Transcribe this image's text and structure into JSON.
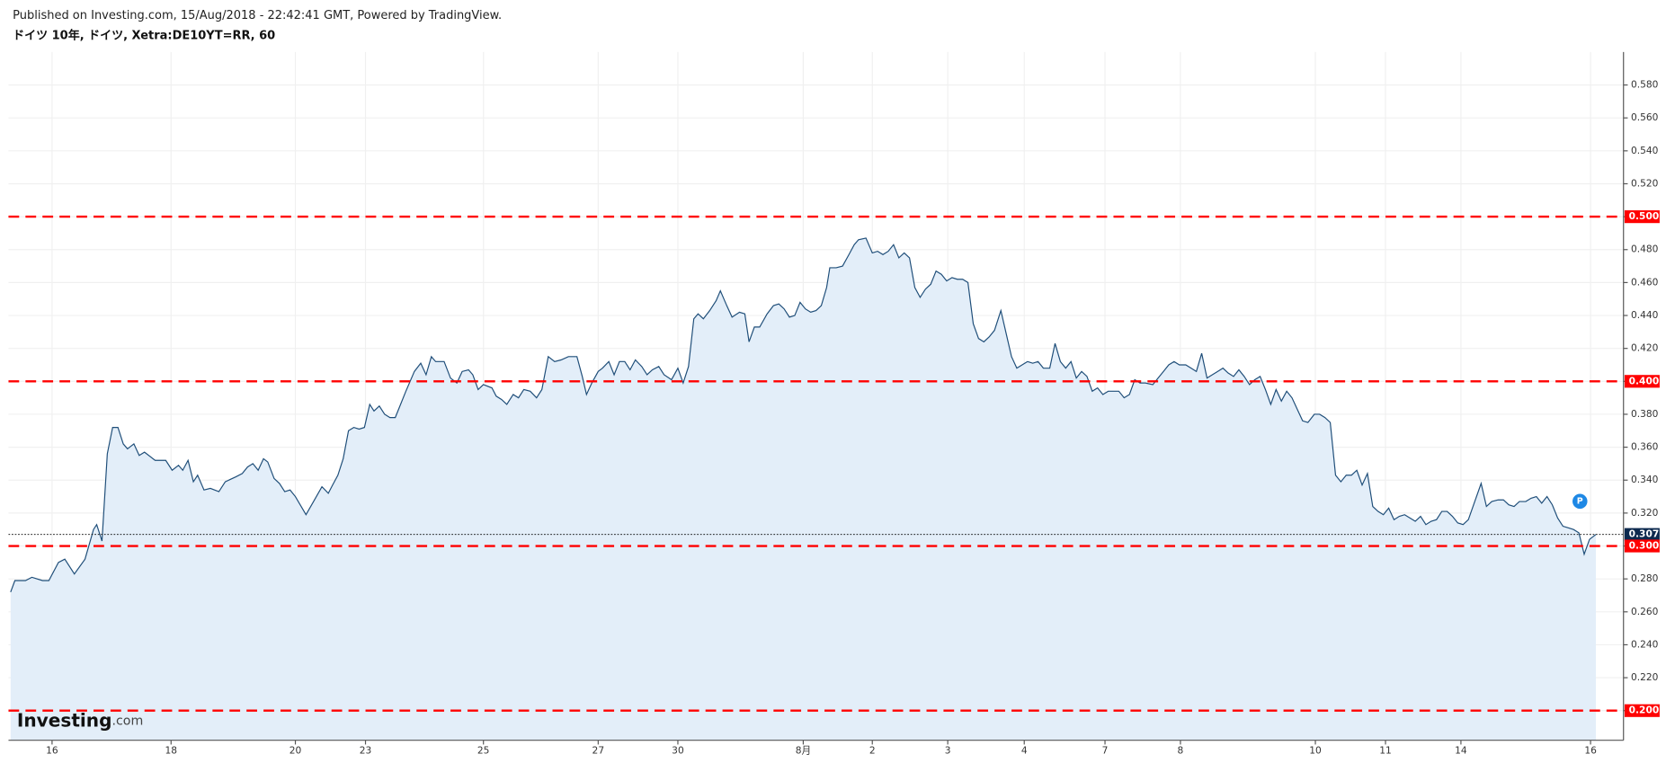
{
  "chart_data": {
    "type": "area",
    "source_note": "Published on Investing.com, 15/Aug/2018 - 22:42:41 GMT, Powered by TradingView.",
    "title": "ドイツ 10年, ドイツ, Xetra:DE10YT=RR, 60",
    "logo": "Investing",
    "logo_suffix": ".com",
    "annotation": "P",
    "color": "#1f4e79",
    "fill_color": "#e3eef9",
    "grid": true,
    "xlim": [
      8,
      1528
    ],
    "ylim": [
      0.182,
      0.6
    ],
    "xticks": [
      {
        "value": 49,
        "label": "16"
      },
      {
        "value": 161,
        "label": "18"
      },
      {
        "value": 278,
        "label": "20"
      },
      {
        "value": 344,
        "label": "23"
      },
      {
        "value": 455,
        "label": "25"
      },
      {
        "value": 563,
        "label": "27"
      },
      {
        "value": 638,
        "label": "30"
      },
      {
        "value": 756,
        "label": "8月"
      },
      {
        "value": 821,
        "label": "2"
      },
      {
        "value": 892,
        "label": "3"
      },
      {
        "value": 964,
        "label": "4"
      },
      {
        "value": 1040,
        "label": "7"
      },
      {
        "value": 1111,
        "label": "8"
      },
      {
        "value": 1238,
        "label": "10"
      },
      {
        "value": 1304,
        "label": "11"
      },
      {
        "value": 1375,
        "label": "14"
      },
      {
        "value": 1497,
        "label": "16"
      }
    ],
    "yticks": [
      {
        "value": 0.2,
        "label": "0.200"
      },
      {
        "value": 0.22,
        "label": "0.220"
      },
      {
        "value": 0.24,
        "label": "0.240"
      },
      {
        "value": 0.26,
        "label": "0.260"
      },
      {
        "value": 0.28,
        "label": "0.280"
      },
      {
        "value": 0.3,
        "label": "0.300"
      },
      {
        "value": 0.32,
        "label": "0.320"
      },
      {
        "value": 0.34,
        "label": "0.340"
      },
      {
        "value": 0.36,
        "label": "0.360"
      },
      {
        "value": 0.38,
        "label": "0.380"
      },
      {
        "value": 0.4,
        "label": "0.400"
      },
      {
        "value": 0.42,
        "label": "0.420"
      },
      {
        "value": 0.44,
        "label": "0.440"
      },
      {
        "value": 0.46,
        "label": "0.460"
      },
      {
        "value": 0.48,
        "label": "0.480"
      },
      {
        "value": 0.5,
        "label": "0.500"
      },
      {
        "value": 0.52,
        "label": "0.520"
      },
      {
        "value": 0.54,
        "label": "0.540"
      },
      {
        "value": 0.56,
        "label": "0.560"
      },
      {
        "value": 0.58,
        "label": "0.580"
      }
    ],
    "levels": [
      {
        "value": 0.5,
        "label": "0.500"
      },
      {
        "value": 0.4,
        "label": "0.400"
      },
      {
        "value": 0.3,
        "label": "0.300"
      },
      {
        "value": 0.2,
        "label": "0.200"
      }
    ],
    "level_color": "#ff0000",
    "last": {
      "value": 0.307,
      "label": "0.307"
    },
    "last_color": "#0d2a4f",
    "x": [
      10,
      14,
      24,
      30,
      40,
      46,
      55,
      61,
      70,
      80,
      88,
      91,
      96,
      101,
      106,
      111,
      116,
      120,
      126,
      131,
      136,
      146,
      156,
      162,
      168,
      172,
      177,
      182,
      186,
      192,
      198,
      206,
      212,
      222,
      228,
      233,
      238,
      243,
      248,
      252,
      258,
      263,
      268,
      273,
      278,
      288,
      296,
      303,
      309,
      313,
      318,
      323,
      328,
      333,
      338,
      343,
      348,
      352,
      357,
      362,
      367,
      372,
      377,
      382,
      390,
      396,
      401,
      406,
      410,
      418,
      424,
      430,
      435,
      441,
      445,
      450,
      455,
      463,
      467,
      472,
      477,
      483,
      488,
      493,
      499,
      505,
      510,
      516,
      522,
      528,
      535,
      543,
      548,
      552,
      557,
      563,
      567,
      573,
      578,
      583,
      588,
      593,
      598,
      604,
      609,
      614,
      620,
      625,
      632,
      638,
      643,
      648,
      653,
      657,
      662,
      668,
      674,
      678,
      684,
      689,
      696,
      701,
      705,
      710,
      715,
      722,
      728,
      733,
      738,
      743,
      748,
      753,
      758,
      763,
      768,
      773,
      778,
      781,
      787,
      793,
      799,
      804,
      808,
      815,
      821,
      826,
      831,
      836,
      841,
      846,
      851,
      856,
      861,
      866,
      871,
      876,
      881,
      886,
      891,
      896,
      901,
      906,
      911,
      916,
      921,
      926,
      931,
      936,
      942,
      947,
      952,
      957,
      962,
      967,
      972,
      977,
      982,
      988,
      993,
      998,
      1003,
      1008,
      1013,
      1018,
      1023,
      1028,
      1033,
      1038,
      1043,
      1048,
      1053,
      1058,
      1063,
      1068,
      1073,
      1078,
      1085,
      1090,
      1095,
      1100,
      1105,
      1110,
      1116,
      1121,
      1126,
      1131,
      1136,
      1141,
      1146,
      1151,
      1156,
      1161,
      1166,
      1171,
      1176,
      1181,
      1186,
      1191,
      1196,
      1201,
      1206,
      1211,
      1216,
      1221,
      1226,
      1231,
      1237,
      1242,
      1247,
      1252,
      1257,
      1262,
      1267,
      1272,
      1277,
      1282,
      1287,
      1292,
      1297,
      1302,
      1307,
      1312,
      1317,
      1322,
      1327,
      1332,
      1337,
      1342,
      1347,
      1352,
      1357,
      1362,
      1367,
      1372,
      1377,
      1382,
      1388,
      1394,
      1399,
      1404,
      1410,
      1415,
      1420,
      1425,
      1430,
      1436,
      1441,
      1446,
      1451,
      1456,
      1461,
      1466,
      1471,
      1476,
      1481,
      1486,
      1491,
      1496,
      1502
    ],
    "values": [
      0.272,
      0.279,
      0.279,
      0.281,
      0.279,
      0.279,
      0.29,
      0.292,
      0.283,
      0.292,
      0.31,
      0.313,
      0.303,
      0.356,
      0.372,
      0.372,
      0.362,
      0.359,
      0.362,
      0.355,
      0.357,
      0.352,
      0.352,
      0.346,
      0.349,
      0.346,
      0.352,
      0.339,
      0.343,
      0.334,
      0.335,
      0.333,
      0.339,
      0.342,
      0.344,
      0.348,
      0.35,
      0.346,
      0.353,
      0.351,
      0.341,
      0.338,
      0.333,
      0.334,
      0.33,
      0.319,
      0.328,
      0.336,
      0.332,
      0.337,
      0.343,
      0.353,
      0.37,
      0.372,
      0.371,
      0.372,
      0.386,
      0.382,
      0.385,
      0.38,
      0.378,
      0.378,
      0.386,
      0.394,
      0.406,
      0.411,
      0.404,
      0.415,
      0.412,
      0.412,
      0.402,
      0.399,
      0.406,
      0.407,
      0.404,
      0.395,
      0.398,
      0.396,
      0.391,
      0.389,
      0.386,
      0.392,
      0.39,
      0.395,
      0.394,
      0.39,
      0.395,
      0.415,
      0.412,
      0.413,
      0.415,
      0.415,
      0.403,
      0.392,
      0.399,
      0.406,
      0.408,
      0.412,
      0.404,
      0.412,
      0.412,
      0.407,
      0.413,
      0.409,
      0.404,
      0.407,
      0.409,
      0.404,
      0.401,
      0.408,
      0.399,
      0.409,
      0.438,
      0.441,
      0.438,
      0.443,
      0.449,
      0.455,
      0.446,
      0.439,
      0.442,
      0.441,
      0.424,
      0.433,
      0.433,
      0.441,
      0.446,
      0.447,
      0.444,
      0.439,
      0.44,
      0.448,
      0.444,
      0.442,
      0.443,
      0.446,
      0.457,
      0.469,
      0.469,
      0.47,
      0.477,
      0.483,
      0.486,
      0.487,
      0.478,
      0.479,
      0.477,
      0.479,
      0.483,
      0.475,
      0.478,
      0.475,
      0.457,
      0.451,
      0.456,
      0.459,
      0.467,
      0.465,
      0.461,
      0.463,
      0.462,
      0.462,
      0.46,
      0.435,
      0.426,
      0.424,
      0.427,
      0.431,
      0.443,
      0.429,
      0.415,
      0.408,
      0.41,
      0.412,
      0.411,
      0.412,
      0.408,
      0.408,
      0.423,
      0.412,
      0.408,
      0.412,
      0.402,
      0.406,
      0.403,
      0.394,
      0.396,
      0.392,
      0.394,
      0.394,
      0.394,
      0.39,
      0.392,
      0.401,
      0.399,
      0.399,
      0.398,
      0.402,
      0.406,
      0.41,
      0.412,
      0.41,
      0.41,
      0.408,
      0.406,
      0.417,
      0.402,
      0.404,
      0.406,
      0.408,
      0.405,
      0.403,
      0.407,
      0.403,
      0.398,
      0.401,
      0.403,
      0.395,
      0.386,
      0.395,
      0.388,
      0.394,
      0.39,
      0.383,
      0.376,
      0.375,
      0.38,
      0.38,
      0.378,
      0.375,
      0.343,
      0.339,
      0.343,
      0.343,
      0.346,
      0.337,
      0.344,
      0.324,
      0.321,
      0.319,
      0.323,
      0.316,
      0.318,
      0.319,
      0.317,
      0.315,
      0.318,
      0.313,
      0.315,
      0.316,
      0.321,
      0.321,
      0.318,
      0.314,
      0.313,
      0.316,
      0.327,
      0.338,
      0.324,
      0.327,
      0.328,
      0.328,
      0.325,
      0.324,
      0.327,
      0.327,
      0.329,
      0.33,
      0.326,
      0.33,
      0.325,
      0.317,
      0.312,
      0.311,
      0.31,
      0.308,
      0.295,
      0.304,
      0.307
    ]
  }
}
